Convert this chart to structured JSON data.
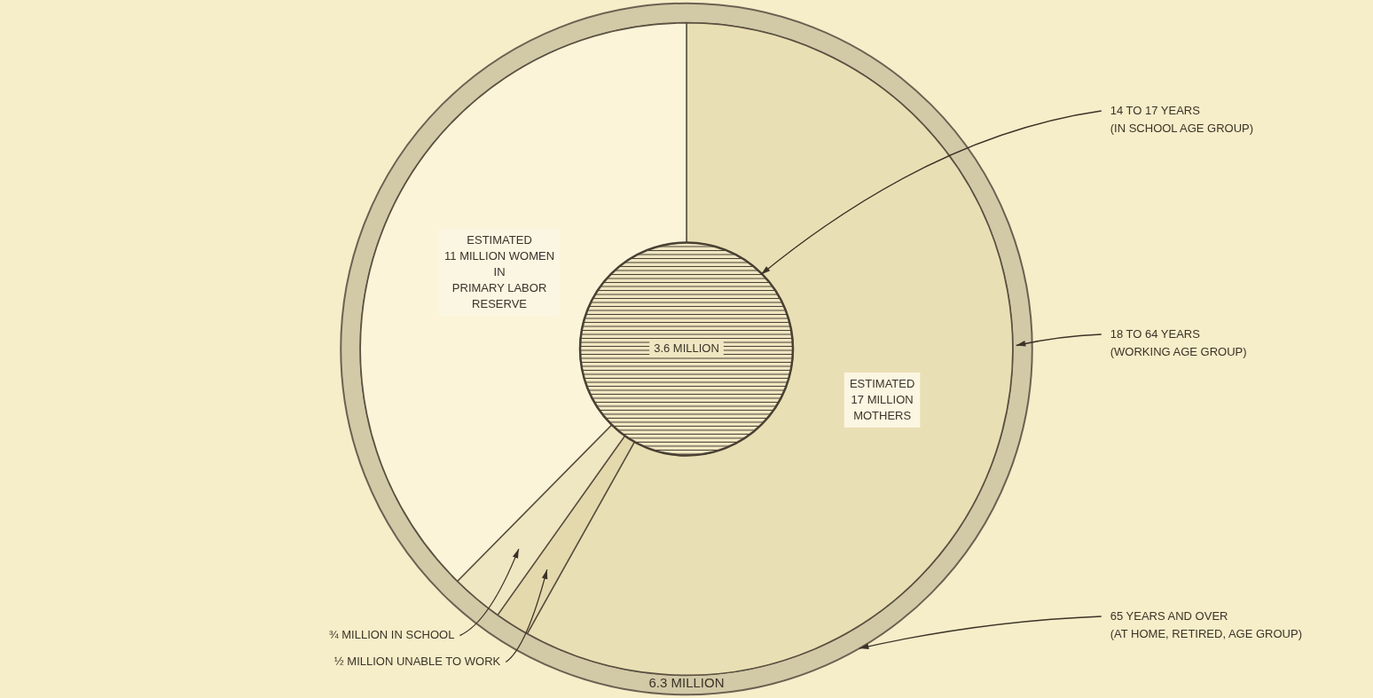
{
  "chart_data": {
    "type": "donut",
    "categories": [
      "ESTIMATED\n17 MILLION\nMOTHERS",
      "½ MILLION UNABLE TO WORK",
      "¾ MILLION IN SCHOOL",
      "ESTIMATED\n11 MILLION WOMEN\nIN\nPRIMARY LABOR\nRESERVE"
    ],
    "values": [
      17,
      0.5,
      0.75,
      11
    ],
    "colors": [
      "#e9dfb4",
      "#e4d9ad",
      "#efe6c2",
      "#fbf4d8"
    ],
    "annotations": [
      "3.6 MILLION",
      "14 TO 17 YEARS\n(IN SCHOOL AGE GROUP)",
      "18 TO 64 YEARS\n(WORKING AGE GROUP)",
      "65 YEARS AND OVER\n(AT HOME, RETIRED, AGE GROUP)",
      "6.3 MILLION"
    ]
  }
}
